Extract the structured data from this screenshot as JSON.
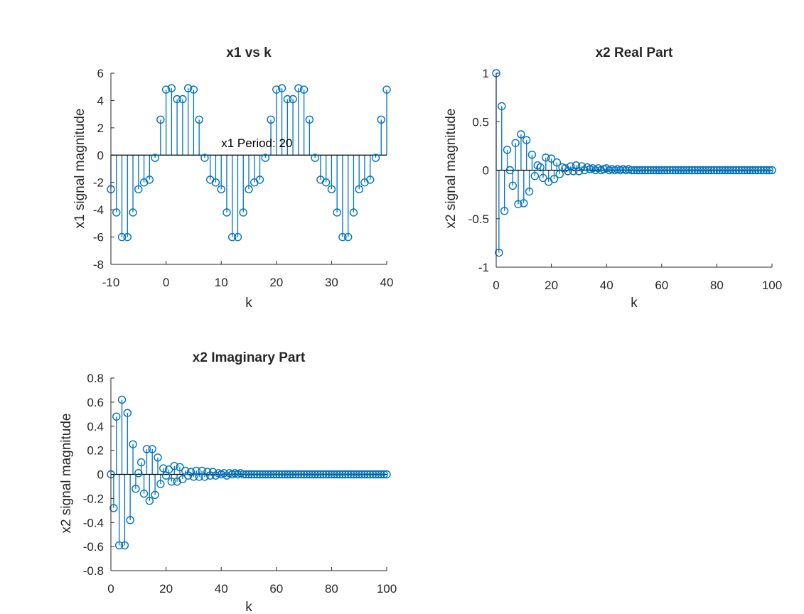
{
  "chart_data": [
    {
      "type": "stem",
      "title": "x1 vs k",
      "xlabel": "k",
      "ylabel": "x1 signal magnitude",
      "xlim": [
        -10,
        40
      ],
      "ylim": [
        -8,
        6
      ],
      "xticks": [
        -10,
        0,
        10,
        20,
        30,
        40
      ],
      "yticks": [
        -8,
        -6,
        -4,
        -2,
        0,
        2,
        4,
        6
      ],
      "xtick_labels": [
        "-10",
        "0",
        "10",
        "20",
        "30",
        "40"
      ],
      "ytick_labels": [
        "-8",
        "-6",
        "-4",
        "-2",
        "0",
        "2",
        "4",
        "6"
      ],
      "annotation": {
        "text": "x1 Period: 20",
        "x": 10,
        "y": 0.9
      },
      "series": [
        {
          "color": "#0072BD",
          "x": [
            -10,
            -9,
            -8,
            -7,
            -6,
            -5,
            -4,
            -3,
            -2,
            -1,
            0,
            1,
            2,
            3,
            4,
            5,
            6,
            7,
            8,
            9,
            10,
            11,
            12,
            13,
            14,
            15,
            16,
            17,
            18,
            19,
            20,
            21,
            22,
            23,
            24,
            25,
            26,
            27,
            28,
            29,
            30,
            31,
            32,
            33,
            34,
            35,
            36,
            37,
            38,
            39,
            40
          ],
          "y": [
            -2.5,
            -4.2,
            -6.0,
            -6.0,
            -4.2,
            -2.5,
            -2.0,
            -1.8,
            -0.2,
            2.6,
            4.8,
            4.9,
            4.1,
            4.1,
            4.9,
            4.8,
            2.6,
            -0.2,
            -1.8,
            -2.0,
            -2.5,
            -4.2,
            -6.0,
            -6.0,
            -4.2,
            -2.5,
            -2.0,
            -1.8,
            -0.2,
            2.6,
            4.8,
            4.9,
            4.1,
            4.1,
            4.9,
            4.8,
            2.6,
            -0.2,
            -1.8,
            -2.0,
            -2.5,
            -4.2,
            -6.0,
            -6.0,
            -4.2,
            -2.5,
            -2.0,
            -1.8,
            -0.2,
            2.6,
            4.8
          ]
        }
      ]
    },
    {
      "type": "stem",
      "title": "x2 Real Part",
      "xlabel": "k",
      "ylabel": "x2 signal magnitude",
      "xlim": [
        0,
        100
      ],
      "ylim": [
        -1,
        1
      ],
      "xticks": [
        0,
        20,
        40,
        60,
        80,
        100
      ],
      "yticks": [
        -1,
        -0.5,
        0,
        0.5,
        1
      ],
      "xtick_labels": [
        "0",
        "20",
        "40",
        "60",
        "80",
        "100"
      ],
      "ytick_labels": [
        "-1",
        "-0.5",
        "0",
        "0.5",
        "1"
      ],
      "series": [
        {
          "color": "#0072BD",
          "x": [
            0,
            1,
            2,
            3,
            4,
            5,
            6,
            7,
            8,
            9,
            10,
            11,
            12,
            13,
            14,
            15,
            16,
            17,
            18,
            19,
            20,
            21,
            22,
            23,
            24,
            25,
            26,
            27,
            28,
            29,
            30,
            31,
            32,
            33,
            34,
            35,
            36,
            37,
            38,
            39,
            40,
            41,
            42,
            43,
            44,
            45,
            46,
            47,
            48,
            49,
            50,
            51,
            52,
            53,
            54,
            55,
            56,
            57,
            58,
            59,
            60,
            61,
            62,
            63,
            64,
            65,
            66,
            67,
            68,
            69,
            70,
            71,
            72,
            73,
            74,
            75,
            76,
            77,
            78,
            79,
            80,
            81,
            82,
            83,
            84,
            85,
            86,
            87,
            88,
            89,
            90,
            91,
            92,
            93,
            94,
            95,
            96,
            97,
            98,
            99,
            100
          ],
          "y": [
            1.0,
            -0.85,
            0.66,
            -0.42,
            0.21,
            0.0,
            -0.16,
            0.28,
            -0.35,
            0.37,
            -0.34,
            0.31,
            -0.22,
            0.16,
            -0.06,
            0.05,
            0.03,
            -0.08,
            0.13,
            -0.12,
            0.12,
            -0.09,
            0.08,
            -0.04,
            0.03,
            0.02,
            -0.01,
            0.04,
            -0.01,
            0.05,
            -0.01,
            0.04,
            0.0,
            0.03,
            0.01,
            0.02,
            0.0,
            0.02,
            0.0,
            0.01,
            0.02,
            0.0,
            0.01,
            0.0,
            0.01,
            0.0,
            0.01,
            0.0,
            0.01,
            0.0,
            0.0,
            0.0,
            0.0,
            0.0,
            0.0,
            0.0,
            0.0,
            0.0,
            0.0,
            0.0,
            0.0,
            0.0,
            0.0,
            0.0,
            0.0,
            0.0,
            0.0,
            0.0,
            0.0,
            0.0,
            0.0,
            0.0,
            0.0,
            0.0,
            0.0,
            0.0,
            0.0,
            0.0,
            0.0,
            0.0,
            0.0,
            0.0,
            0.0,
            0.0,
            0.0,
            0.0,
            0.0,
            0.0,
            0.0,
            0.0,
            0.0,
            0.0,
            0.0,
            0.0,
            0.0,
            0.0,
            0.0,
            0.0,
            0.0,
            0.0,
            0.0
          ]
        }
      ]
    },
    {
      "type": "stem",
      "title": "x2 Imaginary Part",
      "xlabel": "k",
      "ylabel": "x2 signal magnitude",
      "xlim": [
        0,
        100
      ],
      "ylim": [
        -0.8,
        0.8
      ],
      "xticks": [
        0,
        20,
        40,
        60,
        80,
        100
      ],
      "yticks": [
        -0.8,
        -0.6,
        -0.4,
        -0.2,
        0,
        0.2,
        0.4,
        0.6,
        0.8
      ],
      "xtick_labels": [
        "0",
        "20",
        "40",
        "60",
        "80",
        "100"
      ],
      "ytick_labels": [
        "-0.8",
        "-0.6",
        "-0.4",
        "-0.2",
        "0",
        "0.2",
        "0.4",
        "0.6",
        "0.8"
      ],
      "series": [
        {
          "color": "#0072BD",
          "x": [
            0,
            1,
            2,
            3,
            4,
            5,
            6,
            7,
            8,
            9,
            10,
            11,
            12,
            13,
            14,
            15,
            16,
            17,
            18,
            19,
            20,
            21,
            22,
            23,
            24,
            25,
            26,
            27,
            28,
            29,
            30,
            31,
            32,
            33,
            34,
            35,
            36,
            37,
            38,
            39,
            40,
            41,
            42,
            43,
            44,
            45,
            46,
            47,
            48,
            49,
            50,
            51,
            52,
            53,
            54,
            55,
            56,
            57,
            58,
            59,
            60,
            61,
            62,
            63,
            64,
            65,
            66,
            67,
            68,
            69,
            70,
            71,
            72,
            73,
            74,
            75,
            76,
            77,
            78,
            79,
            80,
            81,
            82,
            83,
            84,
            85,
            86,
            87,
            88,
            89,
            90,
            91,
            92,
            93,
            94,
            95,
            96,
            97,
            98,
            99,
            100
          ],
          "y": [
            0.0,
            -0.28,
            0.48,
            -0.59,
            0.62,
            -0.59,
            0.51,
            -0.38,
            0.25,
            -0.12,
            0.01,
            0.1,
            -0.16,
            0.21,
            -0.22,
            0.21,
            -0.17,
            0.14,
            -0.08,
            0.05,
            -0.01,
            0.04,
            -0.06,
            0.07,
            -0.06,
            0.06,
            -0.04,
            0.03,
            -0.01,
            0.02,
            -0.02,
            0.03,
            -0.02,
            0.03,
            -0.02,
            0.02,
            -0.01,
            0.02,
            -0.01,
            0.01,
            0.0,
            0.01,
            -0.01,
            0.01,
            0.0,
            0.01,
            0.0,
            0.01,
            0.0,
            0.0,
            0.0,
            0.0,
            0.0,
            0.0,
            0.0,
            0.0,
            0.0,
            0.0,
            0.0,
            0.0,
            0.0,
            0.0,
            0.0,
            0.0,
            0.0,
            0.0,
            0.0,
            0.0,
            0.0,
            0.0,
            0.0,
            0.0,
            0.0,
            0.0,
            0.0,
            0.0,
            0.0,
            0.0,
            0.0,
            0.0,
            0.0,
            0.0,
            0.0,
            0.0,
            0.0,
            0.0,
            0.0,
            0.0,
            0.0,
            0.0,
            0.0,
            0.0,
            0.0,
            0.0,
            0.0,
            0.0,
            0.0,
            0.0,
            0.0,
            0.0,
            0.0
          ]
        }
      ]
    }
  ]
}
